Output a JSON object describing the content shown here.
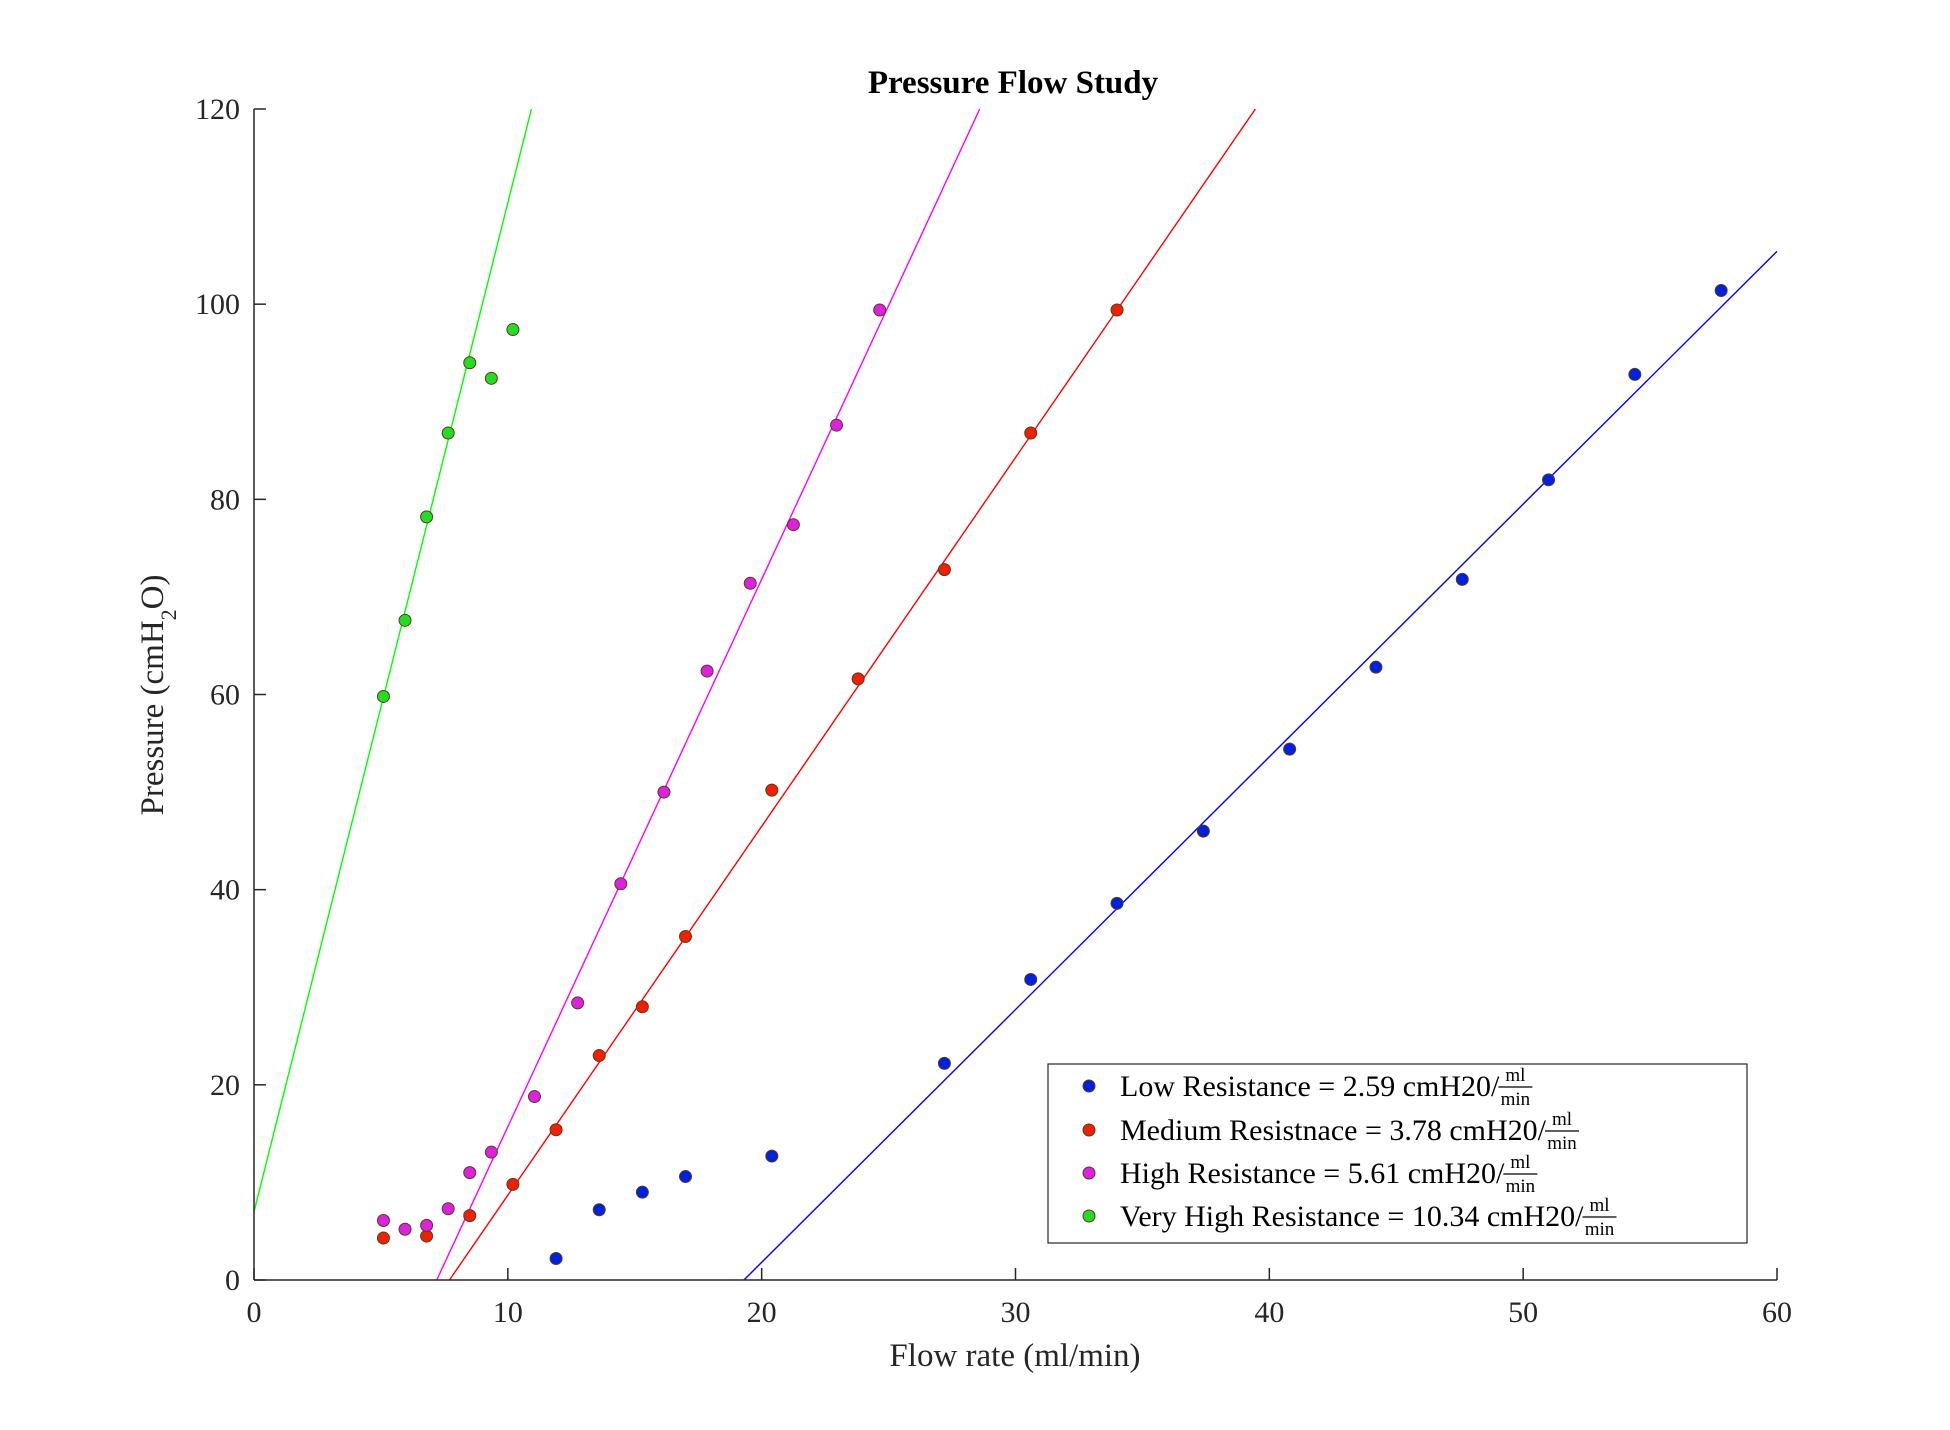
{
  "chart_data": {
    "type": "scatter",
    "title": "Pressure Flow Study",
    "xlabel": "Flow rate (ml/min)",
    "ylabel": "Pressure (cmH2O)",
    "xlim": [
      0,
      60
    ],
    "ylim": [
      0,
      120
    ],
    "xticks": [
      0,
      10,
      20,
      30,
      40,
      50,
      60
    ],
    "yticks": [
      0,
      20,
      40,
      60,
      80,
      100,
      120
    ],
    "grid": false,
    "legend_position": "bottom-right",
    "series": [
      {
        "name": "Low Resistance = 2.59 cmH20/",
        "unit_num": "ml",
        "unit_den": "min",
        "color": "#0000ff",
        "marker_fill": "#0022dd",
        "x": [
          11.9,
          13.6,
          15.3,
          17.0,
          20.4,
          27.2,
          30.6,
          34.0,
          37.4,
          40.8,
          44.2,
          47.6,
          51.0,
          54.4,
          57.8
        ],
        "y": [
          2.2,
          7.2,
          9.0,
          10.6,
          12.7,
          22.2,
          30.8,
          38.6,
          46.0,
          54.4,
          62.8,
          71.8,
          82.0,
          92.8,
          101.4
        ],
        "fit": {
          "slope": 2.59,
          "x_start": 19.3,
          "x_end": 60
        }
      },
      {
        "name": "Medium Resistnace = 3.78 cmH20/",
        "unit_num": "ml",
        "unit_den": "min",
        "color": "#ff0000",
        "marker_fill": "#ee2200",
        "x": [
          5.1,
          6.8,
          8.5,
          10.2,
          11.9,
          13.6,
          15.3,
          17.0,
          20.4,
          23.8,
          27.2,
          30.6,
          34.0
        ],
        "y": [
          4.3,
          4.5,
          6.6,
          9.8,
          15.4,
          23.0,
          28.0,
          35.2,
          50.2,
          61.6,
          72.8,
          86.8,
          99.4
        ],
        "fit": {
          "slope": 3.78,
          "x_start": 7.7,
          "x_end": 39.45
        }
      },
      {
        "name": "High Resistance = 5.61 cmH20/",
        "unit_num": "ml",
        "unit_den": "min",
        "color": "#ff00ff",
        "marker_fill": "#dd22dd",
        "x": [
          5.1,
          5.95,
          6.8,
          7.65,
          8.5,
          9.35,
          11.05,
          12.75,
          14.45,
          16.15,
          17.85,
          19.55,
          21.25,
          22.95,
          24.65
        ],
        "y": [
          6.1,
          5.2,
          5.6,
          7.3,
          11.0,
          13.1,
          18.8,
          28.4,
          40.6,
          50.0,
          62.4,
          71.4,
          77.4,
          87.6,
          99.4
        ],
        "fit": {
          "slope": 5.61,
          "x_start": 7.2,
          "x_end": 28.59
        }
      },
      {
        "name": "Very High Resistance = 10.34 cmH20/",
        "unit_num": "ml",
        "unit_den": "min",
        "color": "#00ff00",
        "marker_fill": "#22dd22",
        "x": [
          5.1,
          5.95,
          6.8,
          7.65,
          8.5,
          9.35,
          10.2
        ],
        "y": [
          59.8,
          67.6,
          78.2,
          86.8,
          94.0,
          92.4,
          97.4
        ],
        "fit": {
          "slope": 10.34,
          "x_start": 0,
          "x_end": 10.93
        }
      }
    ]
  }
}
